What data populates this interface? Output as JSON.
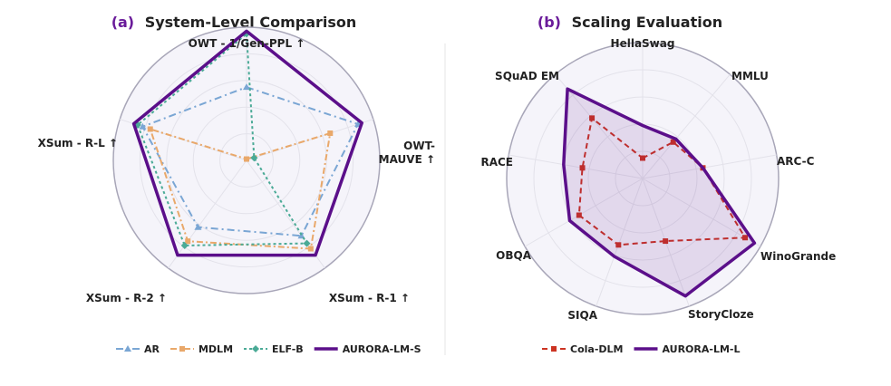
{
  "chart_data": [
    {
      "type": "radar",
      "panel_tag": "(a)",
      "title": "System-Level Comparison",
      "axes": [
        "OWT - 1/Gen-PPL ↑",
        "OWT-\nMAUVE ↑",
        "XSum - R-1 ↑",
        "XSum - R-2 ↑",
        "XSum - R-L ↑"
      ],
      "range": [
        0,
        1
      ],
      "series": [
        {
          "name": "AR",
          "color": "#7aa6d4",
          "dash": "8,4,2,4",
          "marker": "triangle",
          "values": [
            0.55,
            0.88,
            0.7,
            0.62,
            0.82
          ]
        },
        {
          "name": "MDLM",
          "color": "#e9a86a",
          "dash": "7,3,2,3",
          "marker": "square",
          "values": [
            0.01,
            0.66,
            0.82,
            0.75,
            0.76
          ]
        },
        {
          "name": "ELF-B",
          "color": "#4aaa96",
          "dash": "3,3",
          "marker": "diamond",
          "values": [
            0.95,
            0.06,
            0.77,
            0.79,
            0.86
          ]
        },
        {
          "name": "AURORA-LM-S",
          "color": "#5b0f8a",
          "dash": "",
          "marker": "none",
          "values": [
            0.97,
            0.91,
            0.88,
            0.88,
            0.89
          ]
        }
      ]
    },
    {
      "type": "radar",
      "panel_tag": "(b)",
      "title": "Scaling Evaluation",
      "axes": [
        "HellaSwag",
        "MMLU",
        "ARC-C",
        "WinoGrande",
        "StoryCloze",
        "SIQA",
        "OBQA",
        "RACE",
        "SQuAD EM"
      ],
      "range": [
        0,
        1
      ],
      "series": [
        {
          "name": "Cola-DLM",
          "color": "#cc3322",
          "dash": "6,4",
          "marker": "square",
          "values": [
            0.15,
            0.35,
            0.45,
            0.87,
            0.49,
            0.52,
            0.54,
            0.45,
            0.58
          ]
        },
        {
          "name": "AURORA-LM-L",
          "color": "#5b0f8a",
          "dash": "",
          "marker": "none",
          "fill": "rgba(91,15,138,0.12)",
          "values": [
            0.39,
            0.38,
            0.45,
            0.95,
            0.92,
            0.61,
            0.62,
            0.59,
            0.86
          ]
        }
      ]
    }
  ]
}
